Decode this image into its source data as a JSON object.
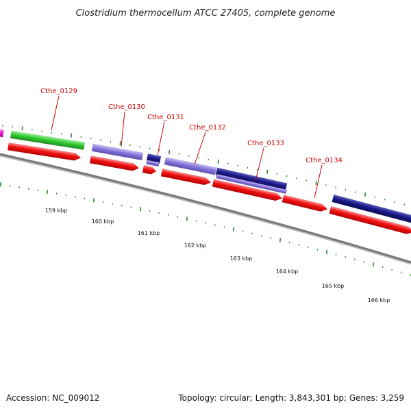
{
  "title": "Clostridium thermocellum ATCC 27405, complete genome",
  "footer": {
    "accession": "Accession: NC_009012",
    "summary": "Topology: circular; Length: 3,843,301 bp; Genes: 3,259"
  },
  "colors": {
    "backbone": "#777777",
    "cds_red": "#ee1111",
    "cds_purple": "#8877dd",
    "cds_navy": "#1a1a88",
    "cds_green": "#33cc33",
    "cds_magenta": "#ee22cc",
    "label_red": "#cc0000",
    "tick_green": "#2a8a2a"
  },
  "kbp_labels": [
    "159 kbp",
    "160 kbp",
    "161 kbp",
    "162 kbp",
    "163 kbp",
    "164 kbp",
    "165 kbp",
    "166 kbp"
  ],
  "genes": [
    {
      "label": "Cthe_0129"
    },
    {
      "label": "Cthe_0130"
    },
    {
      "label": "Cthe_0131"
    },
    {
      "label": "Cthe_0132"
    },
    {
      "label": "Cthe_0133"
    },
    {
      "label": "Cthe_0134"
    }
  ]
}
